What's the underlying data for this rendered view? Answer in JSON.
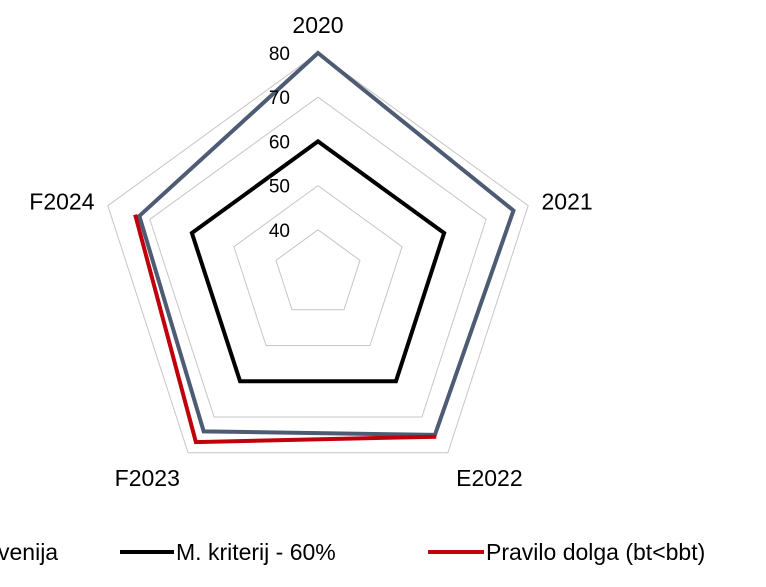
{
  "chart_data": {
    "type": "radar",
    "categories": [
      "2020",
      "2021",
      "E2022",
      "F2023",
      "F2024"
    ],
    "rlim": [
      30,
      80
    ],
    "ticks": [
      40,
      50,
      60,
      70,
      80
    ],
    "grid": true,
    "legend_position": "bottom",
    "series": [
      {
        "name": "venija",
        "color": "#4d5b73",
        "values": [
          80,
          76.5,
          75,
          74,
          72.5
        ]
      },
      {
        "name": "M. kriterij - 60%",
        "color": "#000000",
        "values": [
          60,
          60,
          60,
          60,
          60
        ]
      },
      {
        "name": "Pravilo dolga (bt<bbt)",
        "color": "#c0000b",
        "values": [
          null,
          null,
          75.5,
          77,
          73.5
        ]
      }
    ]
  }
}
